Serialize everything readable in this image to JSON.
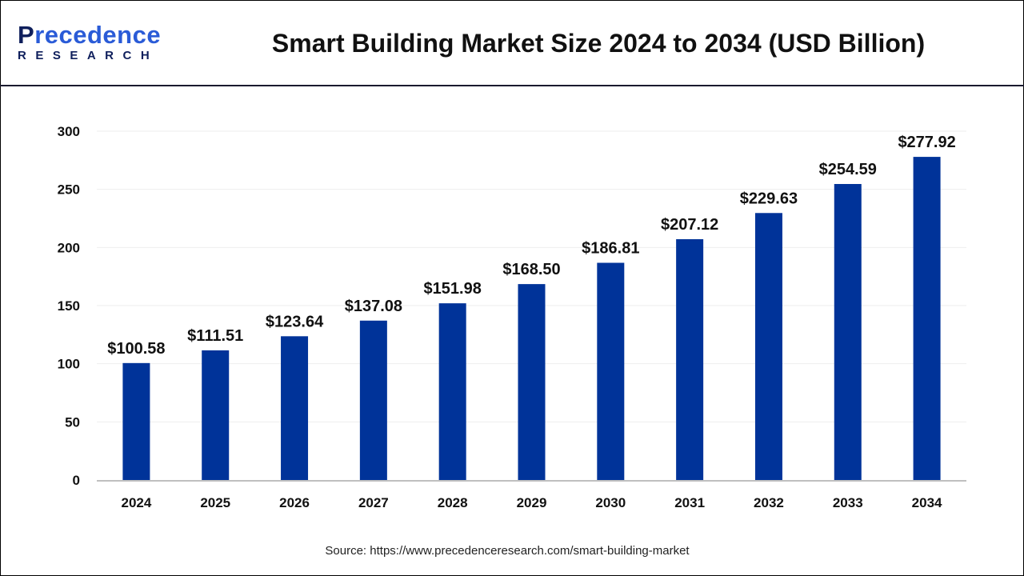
{
  "header": {
    "logo_text": "Precedence",
    "logo_subtext": "RESEARCH",
    "title": "Smart Building Market Size 2024 to 2034 (USD Billion)"
  },
  "colors": {
    "bar": "#003399",
    "axis": "#bfbfbf",
    "grid": "#eeeeee"
  },
  "chart_data": {
    "type": "bar",
    "title": "Smart Building Market Size 2024 to 2034 (USD Billion)",
    "categories": [
      "2024",
      "2025",
      "2026",
      "2027",
      "2028",
      "2029",
      "2030",
      "2031",
      "2032",
      "2033",
      "2034"
    ],
    "values": [
      100.58,
      111.51,
      123.64,
      137.08,
      151.98,
      168.5,
      186.81,
      207.12,
      229.63,
      254.59,
      277.92
    ],
    "data_labels": [
      "$100.58",
      "$111.51",
      "$123.64",
      "$137.08",
      "$151.98",
      "$168.50",
      "$186.81",
      "$207.12",
      "$229.63",
      "$254.59",
      "$277.92"
    ],
    "yticks": [
      0,
      50,
      100,
      150,
      200,
      250,
      300
    ],
    "ylim": [
      0,
      300
    ],
    "xlabel": "",
    "ylabel": "",
    "grid": true,
    "legend": "none"
  },
  "footer": {
    "source": "Source: https://www.precedenceresearch.com/smart-building-market"
  }
}
